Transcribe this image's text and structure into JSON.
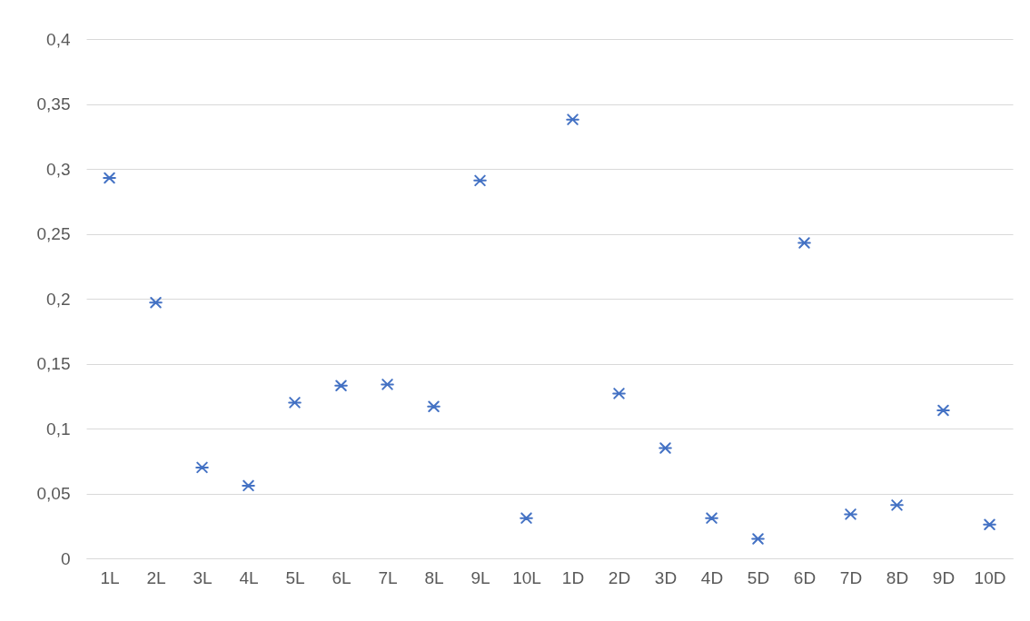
{
  "chart_data": {
    "type": "scatter",
    "categories": [
      "1L",
      "2L",
      "3L",
      "4L",
      "5L",
      "6L",
      "7L",
      "8L",
      "9L",
      "10L",
      "1D",
      "2D",
      "3D",
      "4D",
      "5D",
      "6D",
      "7D",
      "8D",
      "9D",
      "10D"
    ],
    "values": [
      0.293,
      0.197,
      0.07,
      0.056,
      0.12,
      0.133,
      0.134,
      0.117,
      0.291,
      0.031,
      0.338,
      0.127,
      0.085,
      0.031,
      0.015,
      0.243,
      0.034,
      0.041,
      0.114,
      0.026
    ],
    "color": "#4472c4",
    "ylim": [
      0,
      0.4
    ],
    "yticks": [
      0,
      {
        "value": 0.05,
        "label": "0,05"
      },
      {
        "value": 0.1,
        "label": "0,1"
      },
      {
        "value": 0.15,
        "label": "0,15"
      },
      {
        "value": 0.2,
        "label": "0,2"
      },
      {
        "value": 0.25,
        "label": "0,25"
      },
      {
        "value": 0.3,
        "label": "0,3"
      },
      {
        "value": 0.35,
        "label": "0,35"
      },
      {
        "value": 0.4,
        "label": "0,4"
      }
    ],
    "grid": "y",
    "marker": "cross"
  }
}
